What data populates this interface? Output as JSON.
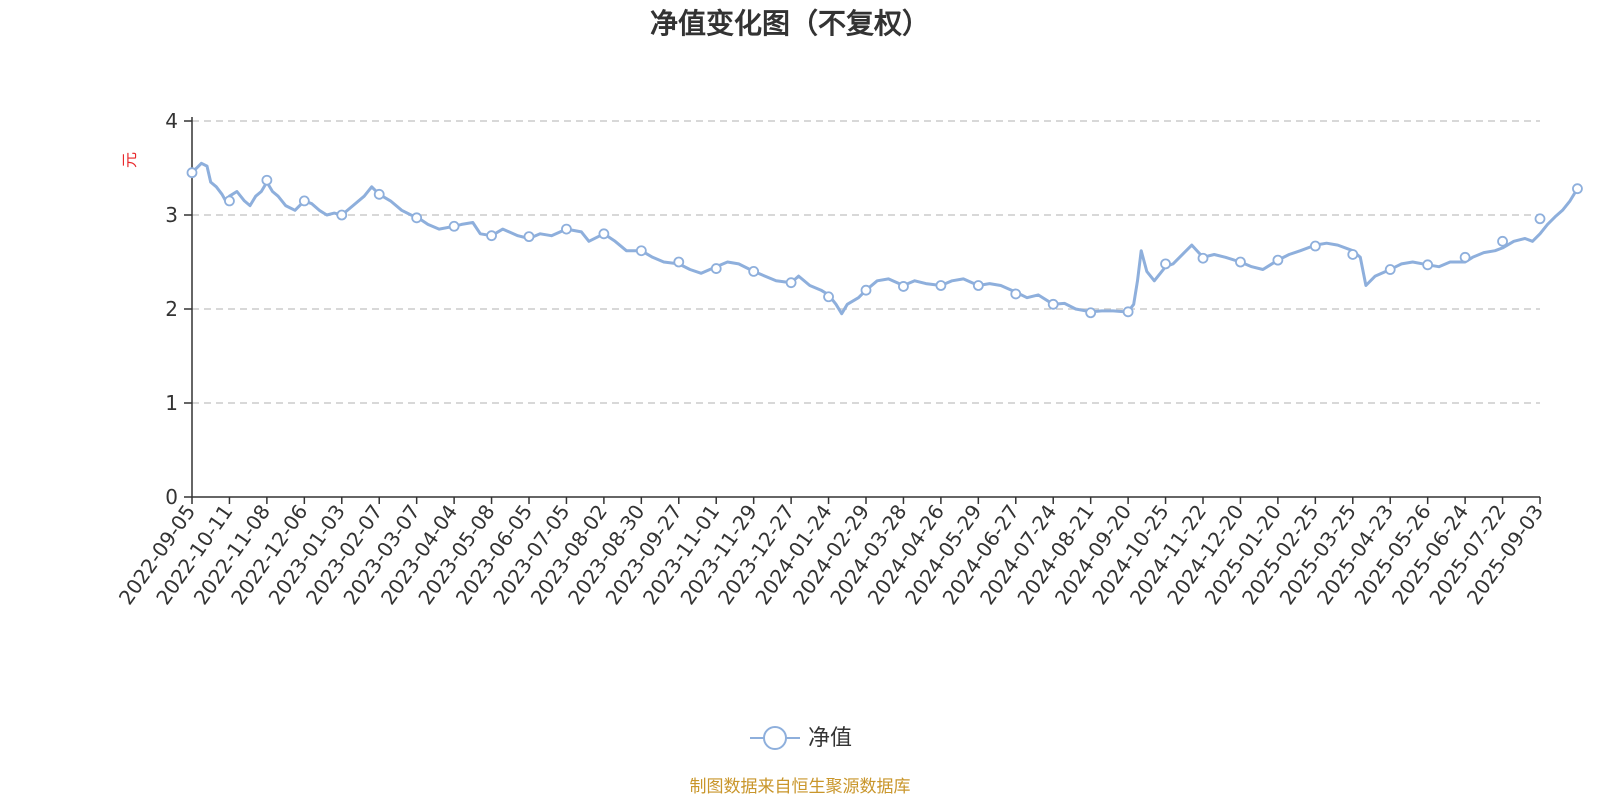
{
  "chart_data": {
    "type": "line",
    "title": "净值变化图（不复权）",
    "y_unit": "元",
    "ylim": [
      0,
      4
    ],
    "y_ticks": [
      0,
      1,
      2,
      3,
      4
    ],
    "grid": "horizontal-dashed",
    "legend_position": "bottom-center",
    "x_tick_labels": [
      "2022-09-05",
      "2022-10-11",
      "2022-11-08",
      "2022-12-06",
      "2023-01-03",
      "2023-02-07",
      "2023-03-07",
      "2023-04-04",
      "2023-05-08",
      "2023-06-05",
      "2023-07-05",
      "2023-08-02",
      "2023-08-30",
      "2023-09-27",
      "2023-11-01",
      "2023-11-29",
      "2023-12-27",
      "2024-01-24",
      "2024-02-29",
      "2024-03-28",
      "2024-04-26",
      "2024-05-29",
      "2024-06-27",
      "2024-07-24",
      "2024-08-21",
      "2024-09-20",
      "2024-10-25",
      "2024-11-22",
      "2024-12-20",
      "2025-01-20",
      "2025-02-25",
      "2025-03-25",
      "2025-04-23",
      "2025-05-26",
      "2025-06-24",
      "2025-07-22",
      "2025-09-03"
    ],
    "series": [
      {
        "name": "净值",
        "color": "#8eafdc",
        "points": [
          [
            0.0,
            3.45
          ],
          [
            0.25,
            3.55
          ],
          [
            0.4,
            3.52
          ],
          [
            0.5,
            3.35
          ],
          [
            0.65,
            3.3
          ],
          [
            0.8,
            3.22
          ],
          [
            0.9,
            3.15
          ],
          [
            1.0,
            3.2
          ],
          [
            1.2,
            3.25
          ],
          [
            1.4,
            3.15
          ],
          [
            1.55,
            3.1
          ],
          [
            1.7,
            3.2
          ],
          [
            1.85,
            3.25
          ],
          [
            2.0,
            3.35
          ],
          [
            2.15,
            3.25
          ],
          [
            2.3,
            3.2
          ],
          [
            2.5,
            3.1
          ],
          [
            2.75,
            3.05
          ],
          [
            3.0,
            3.15
          ],
          [
            3.2,
            3.12
          ],
          [
            3.4,
            3.05
          ],
          [
            3.6,
            3.0
          ],
          [
            3.8,
            3.02
          ],
          [
            4.0,
            3.0
          ],
          [
            4.3,
            3.1
          ],
          [
            4.6,
            3.2
          ],
          [
            4.8,
            3.3
          ],
          [
            5.0,
            3.22
          ],
          [
            5.3,
            3.15
          ],
          [
            5.6,
            3.05
          ],
          [
            5.85,
            3.0
          ],
          [
            6.0,
            2.98
          ],
          [
            6.3,
            2.9
          ],
          [
            6.6,
            2.85
          ],
          [
            7.0,
            2.88
          ],
          [
            7.2,
            2.9
          ],
          [
            7.5,
            2.92
          ],
          [
            7.7,
            2.8
          ],
          [
            8.0,
            2.78
          ],
          [
            8.3,
            2.85
          ],
          [
            8.7,
            2.78
          ],
          [
            9.0,
            2.75
          ],
          [
            9.3,
            2.8
          ],
          [
            9.6,
            2.78
          ],
          [
            10.0,
            2.85
          ],
          [
            10.4,
            2.82
          ],
          [
            10.6,
            2.72
          ],
          [
            11.0,
            2.8
          ],
          [
            11.3,
            2.72
          ],
          [
            11.6,
            2.62
          ],
          [
            12.0,
            2.62
          ],
          [
            12.3,
            2.55
          ],
          [
            12.6,
            2.5
          ],
          [
            13.0,
            2.48
          ],
          [
            13.3,
            2.42
          ],
          [
            13.6,
            2.38
          ],
          [
            14.0,
            2.45
          ],
          [
            14.3,
            2.5
          ],
          [
            14.6,
            2.48
          ],
          [
            15.0,
            2.4
          ],
          [
            15.3,
            2.35
          ],
          [
            15.6,
            2.3
          ],
          [
            16.0,
            2.28
          ],
          [
            16.2,
            2.35
          ],
          [
            16.5,
            2.25
          ],
          [
            16.8,
            2.2
          ],
          [
            17.0,
            2.15
          ],
          [
            17.2,
            2.05
          ],
          [
            17.35,
            1.95
          ],
          [
            17.5,
            2.05
          ],
          [
            17.8,
            2.12
          ],
          [
            18.0,
            2.2
          ],
          [
            18.3,
            2.3
          ],
          [
            18.6,
            2.32
          ],
          [
            19.0,
            2.25
          ],
          [
            19.3,
            2.3
          ],
          [
            19.6,
            2.27
          ],
          [
            20.0,
            2.25
          ],
          [
            20.3,
            2.3
          ],
          [
            20.6,
            2.32
          ],
          [
            21.0,
            2.25
          ],
          [
            21.3,
            2.27
          ],
          [
            21.6,
            2.25
          ],
          [
            22.0,
            2.18
          ],
          [
            22.3,
            2.12
          ],
          [
            22.6,
            2.15
          ],
          [
            23.0,
            2.05
          ],
          [
            23.3,
            2.06
          ],
          [
            23.6,
            2.0
          ],
          [
            24.0,
            1.97
          ],
          [
            24.3,
            1.98
          ],
          [
            24.6,
            1.98
          ],
          [
            24.9,
            1.97
          ],
          [
            25.0,
            1.97
          ],
          [
            25.15,
            2.05
          ],
          [
            25.25,
            2.3
          ],
          [
            25.35,
            2.62
          ],
          [
            25.5,
            2.4
          ],
          [
            25.7,
            2.3
          ],
          [
            26.0,
            2.45
          ],
          [
            26.2,
            2.48
          ],
          [
            26.5,
            2.6
          ],
          [
            26.7,
            2.68
          ],
          [
            27.0,
            2.55
          ],
          [
            27.3,
            2.58
          ],
          [
            27.6,
            2.55
          ],
          [
            28.0,
            2.5
          ],
          [
            28.3,
            2.45
          ],
          [
            28.6,
            2.42
          ],
          [
            29.0,
            2.52
          ],
          [
            29.3,
            2.58
          ],
          [
            29.6,
            2.62
          ],
          [
            30.0,
            2.68
          ],
          [
            30.3,
            2.7
          ],
          [
            30.6,
            2.68
          ],
          [
            31.0,
            2.62
          ],
          [
            31.2,
            2.55
          ],
          [
            31.35,
            2.25
          ],
          [
            31.6,
            2.35
          ],
          [
            32.0,
            2.42
          ],
          [
            32.3,
            2.48
          ],
          [
            32.6,
            2.5
          ],
          [
            33.0,
            2.47
          ],
          [
            33.3,
            2.45
          ],
          [
            33.6,
            2.5
          ],
          [
            34.0,
            2.5
          ],
          [
            34.2,
            2.55
          ],
          [
            34.5,
            2.6
          ],
          [
            34.8,
            2.62
          ],
          [
            35.0,
            2.65
          ],
          [
            35.3,
            2.72
          ],
          [
            35.6,
            2.75
          ],
          [
            35.8,
            2.72
          ],
          [
            36.0,
            2.8
          ],
          [
            36.2,
            2.9
          ],
          [
            36.4,
            2.98
          ],
          [
            36.6,
            3.05
          ],
          [
            36.8,
            3.15
          ],
          [
            37.0,
            3.28
          ]
        ],
        "marker_points": [
          [
            0.0,
            3.45
          ],
          [
            1.0,
            3.15
          ],
          [
            2.0,
            3.37
          ],
          [
            3.0,
            3.15
          ],
          [
            4.0,
            3.0
          ],
          [
            5.0,
            3.22
          ],
          [
            6.0,
            2.97
          ],
          [
            7.0,
            2.88
          ],
          [
            8.0,
            2.78
          ],
          [
            9.0,
            2.77
          ],
          [
            10.0,
            2.85
          ],
          [
            11.0,
            2.8
          ],
          [
            12.0,
            2.62
          ],
          [
            13.0,
            2.5
          ],
          [
            14.0,
            2.43
          ],
          [
            15.0,
            2.4
          ],
          [
            16.0,
            2.28
          ],
          [
            17.0,
            2.13
          ],
          [
            18.0,
            2.2
          ],
          [
            19.0,
            2.24
          ],
          [
            20.0,
            2.25
          ],
          [
            21.0,
            2.25
          ],
          [
            22.0,
            2.16
          ],
          [
            23.0,
            2.05
          ],
          [
            24.0,
            1.96
          ],
          [
            25.0,
            1.97
          ],
          [
            26.0,
            2.48
          ],
          [
            27.0,
            2.54
          ],
          [
            28.0,
            2.5
          ],
          [
            29.0,
            2.52
          ],
          [
            30.0,
            2.67
          ],
          [
            31.0,
            2.58
          ],
          [
            32.0,
            2.42
          ],
          [
            33.0,
            2.47
          ],
          [
            34.0,
            2.55
          ],
          [
            35.0,
            2.72
          ],
          [
            36.0,
            2.96
          ],
          [
            37.0,
            3.28
          ]
        ]
      }
    ]
  },
  "legend": {
    "label": "净值"
  },
  "source_note": "制图数据来自恒生聚源数据库"
}
